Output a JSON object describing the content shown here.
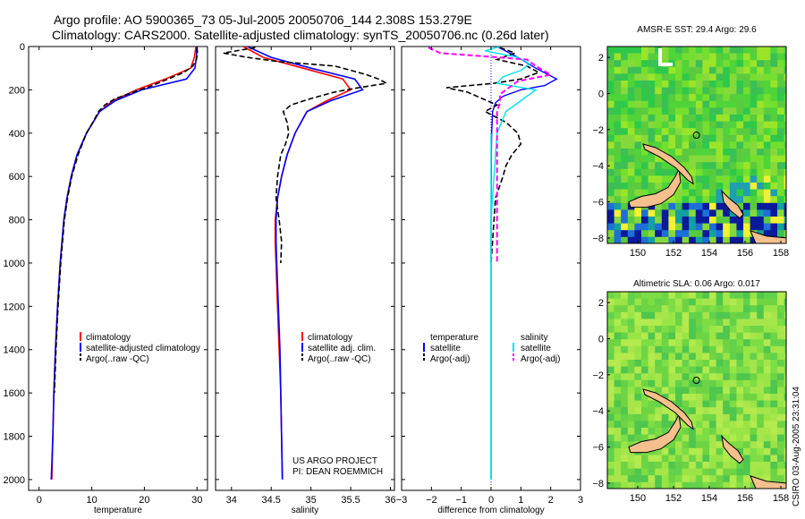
{
  "header": {
    "line1": "Argo profile: AO 5900365_73 05-Jul-2005 20050706_144 2.308S 153.279E",
    "line2": "Climatology: CARS2000. Satellite-adjusted climatology: synTS_20050706.nc (0.26d later)"
  },
  "credit": {
    "project": "US ARGO PROJECT",
    "pi": "PI: DEAN ROEMMICH",
    "stamp": "CSIRO 03-Aug-2005 23:31:04"
  },
  "colors": {
    "clim": "#ff0000",
    "sat": "#0000ff",
    "argo": "#000000",
    "sal": "#00e5ee",
    "salsat": "#00e5ee",
    "argoadj": "#ff00ff"
  },
  "chart_data": [
    {
      "type": "line",
      "id": "temperature",
      "xlabel": "temperature",
      "ylabel": "",
      "xlim": [
        -2,
        32
      ],
      "ylim": [
        2050,
        0
      ],
      "xticks": [
        0,
        10,
        20,
        30
      ],
      "yticks": [
        0,
        200,
        400,
        600,
        800,
        1000,
        1200,
        1400,
        1600,
        1800,
        2000
      ],
      "legend": {
        "position": "center-right",
        "entries": [
          "climatology",
          "satellite-adjusted climatology",
          "Argo(..raw -QC)"
        ]
      },
      "series": [
        {
          "name": "climatology",
          "depth": [
            0,
            50,
            100,
            150,
            200,
            250,
            300,
            400,
            500,
            600,
            700,
            800,
            1000,
            1200,
            1400,
            1600,
            1800,
            2000
          ],
          "values": [
            29.8,
            29.5,
            28.8,
            24,
            18.5,
            14,
            11.5,
            9,
            7.2,
            6.1,
            5.3,
            4.7,
            4.0,
            3.5,
            3.1,
            2.8,
            2.6,
            2.4
          ]
        },
        {
          "name": "satellite-adjusted climatology",
          "depth": [
            0,
            50,
            100,
            150,
            200,
            250,
            300,
            400,
            500,
            600,
            700,
            800,
            1000,
            1200,
            1400,
            1600,
            1800,
            2000
          ],
          "values": [
            30,
            29.9,
            29.6,
            28,
            19.5,
            14.5,
            11.5,
            9,
            7.2,
            6.1,
            5.3,
            4.7,
            4.0,
            3.5,
            3.1,
            2.8,
            2.6,
            2.3
          ]
        },
        {
          "name": "Argo(..raw -QC)",
          "depth": [
            5,
            30,
            60,
            90,
            120,
            150,
            180,
            210,
            240,
            270,
            300,
            350,
            400,
            450,
            500,
            600,
            700,
            800,
            1000,
            1200,
            1400,
            1600
          ],
          "values": [
            30,
            30.1,
            29.9,
            29.2,
            27.5,
            24.5,
            21.5,
            18,
            14.5,
            12.5,
            11.3,
            10.2,
            9,
            8.2,
            7.4,
            6.2,
            5.4,
            4.8,
            4.1,
            3.6,
            3.2,
            2.9
          ]
        }
      ]
    },
    {
      "type": "line",
      "id": "salinity",
      "xlabel": "salinity",
      "ylabel": "",
      "xlim": [
        33.8,
        36.05
      ],
      "ylim": [
        2050,
        0
      ],
      "xticks": [
        34,
        34.5,
        35,
        35.5,
        36
      ],
      "xticklabels": [
        "34",
        "34.5",
        "35",
        "35.5",
        "36"
      ],
      "legend": {
        "position": "center-right",
        "entries": [
          "climatology",
          "satellite adj. clim.",
          "Argo(..raw -QC)"
        ]
      },
      "series": [
        {
          "name": "climatology",
          "depth": [
            0,
            50,
            100,
            150,
            200,
            250,
            300,
            400,
            500,
            600,
            700,
            800,
            900,
            1000,
            1200,
            1400,
            1600,
            1800,
            2000
          ],
          "values": [
            34.15,
            34.4,
            34.9,
            35.4,
            35.5,
            35.2,
            34.95,
            34.8,
            34.7,
            34.63,
            34.58,
            34.55,
            34.55,
            34.56,
            34.58,
            34.6,
            34.62,
            34.63,
            34.64
          ]
        },
        {
          "name": "satellite adj. clim.",
          "depth": [
            0,
            50,
            100,
            150,
            200,
            250,
            300,
            400,
            500,
            600,
            700,
            800,
            900,
            1000,
            1200,
            1400,
            1600,
            1800,
            2000
          ],
          "values": [
            34.2,
            34.5,
            35.0,
            35.55,
            35.65,
            35.25,
            34.95,
            34.8,
            34.7,
            34.63,
            34.58,
            34.56,
            34.56,
            34.57,
            34.59,
            34.61,
            34.62,
            34.63,
            34.64
          ]
        },
        {
          "name": "Argo(..raw -QC)",
          "depth": [
            5,
            30,
            50,
            70,
            90,
            110,
            130,
            150,
            170,
            190,
            210,
            240,
            270,
            300,
            350,
            400,
            450,
            500,
            600,
            700,
            800,
            900,
            1000
          ],
          "values": [
            34.3,
            33.9,
            34.2,
            34.6,
            35.3,
            35.5,
            35.7,
            35.85,
            35.95,
            35.6,
            35.3,
            35.0,
            34.75,
            34.65,
            34.7,
            34.72,
            34.68,
            34.62,
            34.58,
            34.56,
            34.6,
            34.63,
            34.62
          ]
        }
      ]
    },
    {
      "type": "line",
      "id": "difference",
      "xlabel": "difference from climatology",
      "ylabel": "",
      "xlim": [
        -3,
        3
      ],
      "ylim": [
        2050,
        0
      ],
      "xticks": [
        -3,
        -2,
        -1,
        0,
        1,
        2,
        3
      ],
      "legend": {
        "position": "center",
        "entries": [
          "temperature",
          "satellite",
          "Argo(-adj)",
          "salinity",
          "satellite",
          "Argo(-adj)"
        ]
      },
      "series": [
        {
          "name": "temperature satellite",
          "depth": [
            0,
            50,
            100,
            150,
            180,
            200,
            230,
            260,
            300,
            400,
            500,
            600,
            800,
            1000,
            1200,
            1400,
            1600,
            1800,
            2000
          ],
          "values": [
            0.2,
            0.9,
            1.5,
            2.2,
            1.8,
            1.0,
            0.4,
            0.15,
            0.05,
            0.02,
            0.01,
            0.01,
            0.0,
            0.0,
            0.0,
            0.0,
            0.0,
            0.0,
            0.0
          ]
        },
        {
          "name": "temperature Argo(-adj)",
          "depth": [
            5,
            30,
            60,
            90,
            120,
            150,
            170,
            190,
            210,
            240,
            270,
            300,
            350,
            400,
            450,
            500,
            550,
            600,
            700,
            800,
            900,
            1000
          ],
          "values": [
            0.3,
            0.8,
            0.2,
            1.2,
            1.6,
            1.0,
            0.1,
            -1.5,
            -0.8,
            -0.3,
            0.2,
            -0.2,
            0.5,
            0.9,
            1.0,
            0.7,
            0.5,
            0.4,
            0.15,
            0.1,
            0.05,
            0.0
          ]
        },
        {
          "name": "salinity satellite",
          "depth": [
            0,
            20,
            50,
            80,
            110,
            140,
            170,
            200,
            250,
            300,
            400,
            600,
            800,
            1000,
            1400,
            2000
          ],
          "values": [
            0.3,
            -0.2,
            0.9,
            1.3,
            1.0,
            0.4,
            0.2,
            1.5,
            1.0,
            0.5,
            0.2,
            0.1,
            0.0,
            0.0,
            0.0,
            0.0
          ]
        },
        {
          "name": "salinity Argo(-adj)",
          "depth": [
            5,
            30,
            60,
            90,
            130,
            160,
            190,
            220,
            260,
            300,
            350,
            400,
            500,
            600,
            800,
            1000
          ],
          "values": [
            -2.1,
            -1.7,
            1.2,
            1.5,
            2.0,
            0.9,
            0.6,
            0.3,
            0.3,
            0.2,
            0.2,
            0.2,
            0.2,
            0.2,
            0.2,
            0.2
          ]
        }
      ]
    },
    {
      "type": "heatmap",
      "id": "sst_map",
      "title": "AMSR-E SST: 29.4 Argo: 29.6",
      "xlim": [
        148.3,
        158.3
      ],
      "ylim": [
        -8.3,
        2.6
      ],
      "xticks": [
        150,
        152,
        154,
        156,
        158
      ],
      "yticks": [
        -8,
        -6,
        -4,
        -2,
        0,
        2
      ]
    },
    {
      "type": "heatmap",
      "id": "sla_map",
      "title": "Altimetric SLA: 0.06 Argo: 0.017",
      "xlim": [
        148.3,
        158.3
      ],
      "ylim": [
        -8.3,
        2.6
      ],
      "xticks": [
        150,
        152,
        154,
        156,
        158
      ],
      "yticks": [
        -8,
        -6,
        -4,
        -2,
        0,
        2
      ]
    }
  ]
}
